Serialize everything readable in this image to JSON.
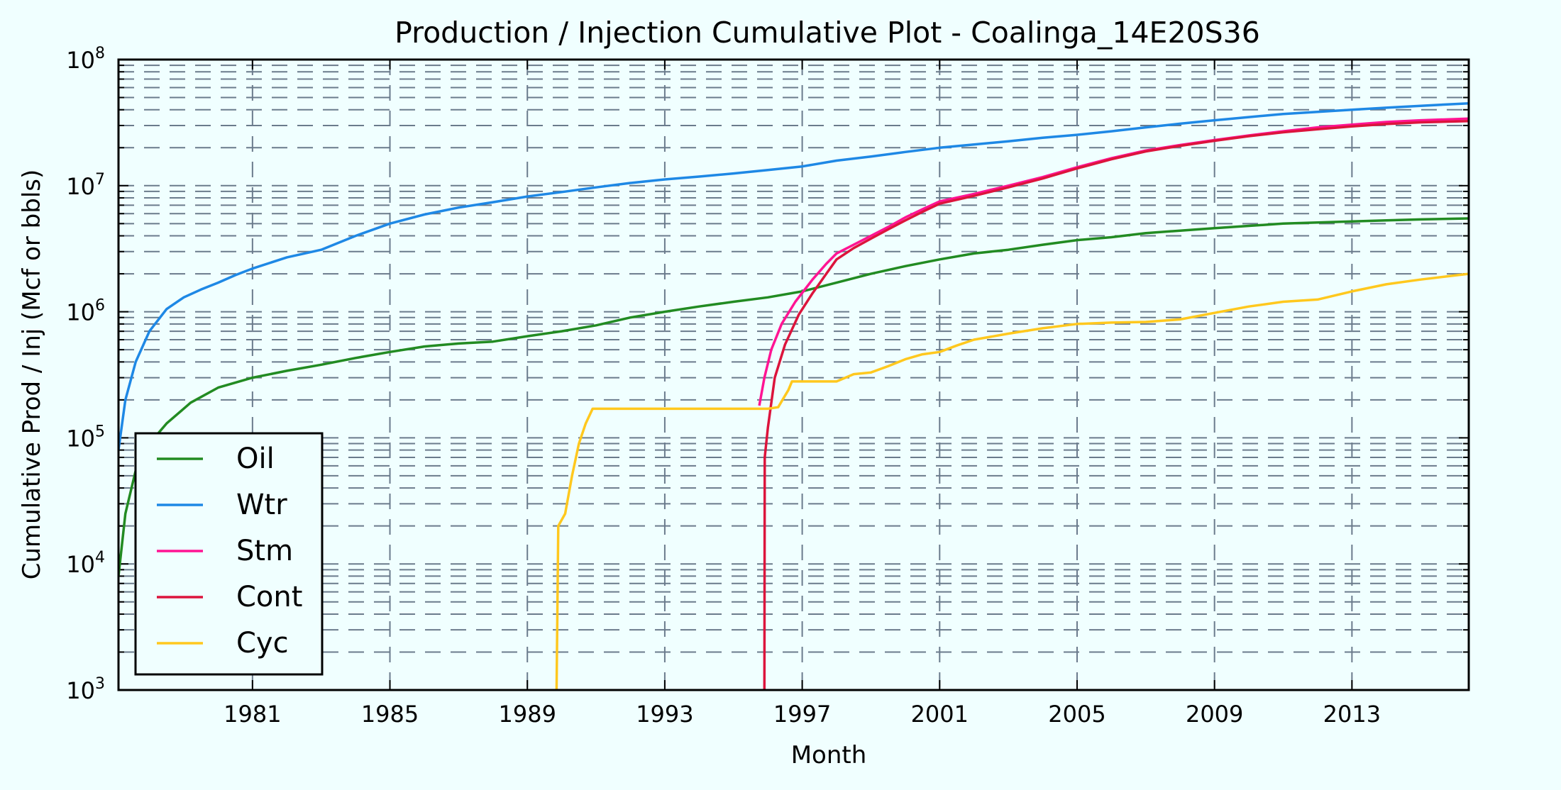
{
  "chart_data": {
    "type": "line",
    "title": "Production / Injection Cumulative Plot - Coalinga_14E20S36",
    "xlabel": "Month",
    "ylabel": "Cumulative Prod / Inj (Mcf or bbls)",
    "xlim": [
      1977.1,
      2016.4
    ],
    "ylim": [
      1000,
      100000000
    ],
    "yscale": "log",
    "grid": true,
    "legend_position": "lower-left",
    "xticks": [
      1981,
      1985,
      1989,
      1993,
      1997,
      2001,
      2005,
      2009,
      2013
    ],
    "xtick_labels": [
      "1981",
      "1985",
      "1989",
      "1993",
      "1997",
      "2001",
      "2005",
      "2009",
      "2013"
    ],
    "yticks": [
      3,
      4,
      5,
      6,
      7,
      8
    ],
    "ytick_base": "10",
    "series": [
      {
        "name": "Oil",
        "color": "#228b22",
        "points": [
          [
            1977.1,
            8000
          ],
          [
            1977.3,
            25000
          ],
          [
            1977.6,
            55000
          ],
          [
            1978.0,
            90000
          ],
          [
            1978.5,
            130000
          ],
          [
            1979.2,
            190000
          ],
          [
            1980.0,
            250000
          ],
          [
            1981.0,
            300000
          ],
          [
            1982.0,
            340000
          ],
          [
            1983.0,
            380000
          ],
          [
            1984.0,
            430000
          ],
          [
            1985.0,
            480000
          ],
          [
            1986.0,
            530000
          ],
          [
            1987.0,
            560000
          ],
          [
            1988.0,
            580000
          ],
          [
            1989.0,
            640000
          ],
          [
            1990.0,
            700000
          ],
          [
            1991.0,
            780000
          ],
          [
            1992.0,
            900000
          ],
          [
            1993.0,
            1000000
          ],
          [
            1994.0,
            1100000
          ],
          [
            1995.0,
            1200000
          ],
          [
            1996.0,
            1300000
          ],
          [
            1997.0,
            1450000
          ],
          [
            1998.0,
            1700000
          ],
          [
            1999.0,
            2000000
          ],
          [
            2000.0,
            2300000
          ],
          [
            2001.0,
            2600000
          ],
          [
            2002.0,
            2900000
          ],
          [
            2003.0,
            3100000
          ],
          [
            2004.0,
            3400000
          ],
          [
            2005.0,
            3700000
          ],
          [
            2006.0,
            3900000
          ],
          [
            2007.0,
            4200000
          ],
          [
            2008.0,
            4400000
          ],
          [
            2009.0,
            4600000
          ],
          [
            2010.0,
            4800000
          ],
          [
            2011.0,
            5000000
          ],
          [
            2012.0,
            5100000
          ],
          [
            2013.0,
            5200000
          ],
          [
            2014.0,
            5300000
          ],
          [
            2015.0,
            5400000
          ],
          [
            2016.4,
            5500000
          ]
        ]
      },
      {
        "name": "Wtr",
        "color": "#1e88e5",
        "points": [
          [
            1977.1,
            80000
          ],
          [
            1977.3,
            200000
          ],
          [
            1977.6,
            400000
          ],
          [
            1978.0,
            700000
          ],
          [
            1978.5,
            1050000
          ],
          [
            1979.0,
            1300000
          ],
          [
            1979.5,
            1500000
          ],
          [
            1980.0,
            1700000
          ],
          [
            1980.5,
            1950000
          ],
          [
            1981.0,
            2200000
          ],
          [
            1982.0,
            2700000
          ],
          [
            1983.0,
            3100000
          ],
          [
            1984.0,
            4000000
          ],
          [
            1985.0,
            5000000
          ],
          [
            1986.0,
            5900000
          ],
          [
            1987.0,
            6700000
          ],
          [
            1988.0,
            7400000
          ],
          [
            1989.0,
            8200000
          ],
          [
            1990.0,
            8900000
          ],
          [
            1991.0,
            9700000
          ],
          [
            1992.0,
            10500000
          ],
          [
            1993.0,
            11200000
          ],
          [
            1994.0,
            11800000
          ],
          [
            1995.0,
            12500000
          ],
          [
            1996.0,
            13300000
          ],
          [
            1997.0,
            14200000
          ],
          [
            1998.0,
            15800000
          ],
          [
            1999.0,
            17000000
          ],
          [
            2000.0,
            18500000
          ],
          [
            2001.0,
            20000000
          ],
          [
            2002.0,
            21200000
          ],
          [
            2003.0,
            22500000
          ],
          [
            2004.0,
            24000000
          ],
          [
            2005.0,
            25300000
          ],
          [
            2006.0,
            27000000
          ],
          [
            2007.0,
            29000000
          ],
          [
            2008.0,
            31000000
          ],
          [
            2009.0,
            33000000
          ],
          [
            2010.0,
            35000000
          ],
          [
            2011.0,
            37000000
          ],
          [
            2012.0,
            38500000
          ],
          [
            2013.0,
            40000000
          ],
          [
            2014.0,
            41500000
          ],
          [
            2015.0,
            43000000
          ],
          [
            2016.4,
            45000000
          ]
        ]
      },
      {
        "name": "Stm",
        "color": "#ff1493",
        "points": [
          [
            1995.75,
            180000
          ],
          [
            1995.9,
            300000
          ],
          [
            1996.1,
            500000
          ],
          [
            1996.4,
            800000
          ],
          [
            1996.8,
            1200000
          ],
          [
            1997.3,
            1800000
          ],
          [
            1997.7,
            2400000
          ],
          [
            1998.0,
            2900000
          ],
          [
            1998.5,
            3400000
          ],
          [
            1999.0,
            4000000
          ],
          [
            1999.5,
            4700000
          ],
          [
            2000.0,
            5600000
          ],
          [
            2000.5,
            6500000
          ],
          [
            2001.0,
            7500000
          ],
          [
            2002.0,
            8600000
          ],
          [
            2003.0,
            10000000
          ],
          [
            2004.0,
            11700000
          ],
          [
            2005.0,
            14000000
          ],
          [
            2006.0,
            16500000
          ],
          [
            2007.0,
            19000000
          ],
          [
            2008.0,
            21000000
          ],
          [
            2009.0,
            23000000
          ],
          [
            2010.0,
            25000000
          ],
          [
            2011.0,
            27000000
          ],
          [
            2012.0,
            29000000
          ],
          [
            2013.0,
            30500000
          ],
          [
            2014.0,
            32000000
          ],
          [
            2015.0,
            33000000
          ],
          [
            2016.4,
            34000000
          ]
        ]
      },
      {
        "name": "Cont",
        "color": "#dc143c",
        "points": [
          [
            1995.9,
            1000
          ],
          [
            1995.91,
            70000
          ],
          [
            1996.0,
            120000
          ],
          [
            1996.2,
            300000
          ],
          [
            1996.5,
            550000
          ],
          [
            1996.9,
            950000
          ],
          [
            1997.3,
            1400000
          ],
          [
            1997.7,
            2000000
          ],
          [
            1998.0,
            2600000
          ],
          [
            1998.5,
            3200000
          ],
          [
            1999.0,
            3800000
          ],
          [
            1999.5,
            4500000
          ],
          [
            2000.0,
            5300000
          ],
          [
            2000.5,
            6200000
          ],
          [
            2001.0,
            7200000
          ],
          [
            2002.0,
            8300000
          ],
          [
            2003.0,
            9700000
          ],
          [
            2004.0,
            11400000
          ],
          [
            2005.0,
            13700000
          ],
          [
            2006.0,
            16200000
          ],
          [
            2007.0,
            18700000
          ],
          [
            2008.0,
            20700000
          ],
          [
            2009.0,
            22700000
          ],
          [
            2010.0,
            24700000
          ],
          [
            2011.0,
            26500000
          ],
          [
            2012.0,
            28000000
          ],
          [
            2013.0,
            29500000
          ],
          [
            2014.0,
            30800000
          ],
          [
            2015.0,
            31800000
          ],
          [
            2016.4,
            32500000
          ]
        ]
      },
      {
        "name": "Cyc",
        "color": "#ffc81e",
        "points": [
          [
            1989.85,
            1000
          ],
          [
            1989.9,
            20000
          ],
          [
            1990.1,
            25000
          ],
          [
            1990.3,
            50000
          ],
          [
            1990.5,
            90000
          ],
          [
            1990.7,
            130000
          ],
          [
            1990.9,
            170000
          ],
          [
            1995.0,
            170000
          ],
          [
            1996.0,
            170000
          ],
          [
            1996.3,
            175000
          ],
          [
            1996.6,
            240000
          ],
          [
            1996.7,
            280000
          ],
          [
            1998.0,
            280000
          ],
          [
            1998.5,
            320000
          ],
          [
            1999.0,
            330000
          ],
          [
            1999.5,
            370000
          ],
          [
            2000.0,
            420000
          ],
          [
            2000.5,
            460000
          ],
          [
            2001.0,
            480000
          ],
          [
            2001.5,
            540000
          ],
          [
            2002.0,
            600000
          ],
          [
            2003.0,
            670000
          ],
          [
            2004.0,
            740000
          ],
          [
            2005.0,
            800000
          ],
          [
            2006.0,
            820000
          ],
          [
            2007.0,
            830000
          ],
          [
            2008.0,
            870000
          ],
          [
            2009.0,
            980000
          ],
          [
            2010.0,
            1100000
          ],
          [
            2011.0,
            1200000
          ],
          [
            2012.0,
            1250000
          ],
          [
            2013.0,
            1450000
          ],
          [
            2014.0,
            1650000
          ],
          [
            2015.0,
            1800000
          ],
          [
            2016.4,
            2000000
          ]
        ]
      }
    ]
  }
}
